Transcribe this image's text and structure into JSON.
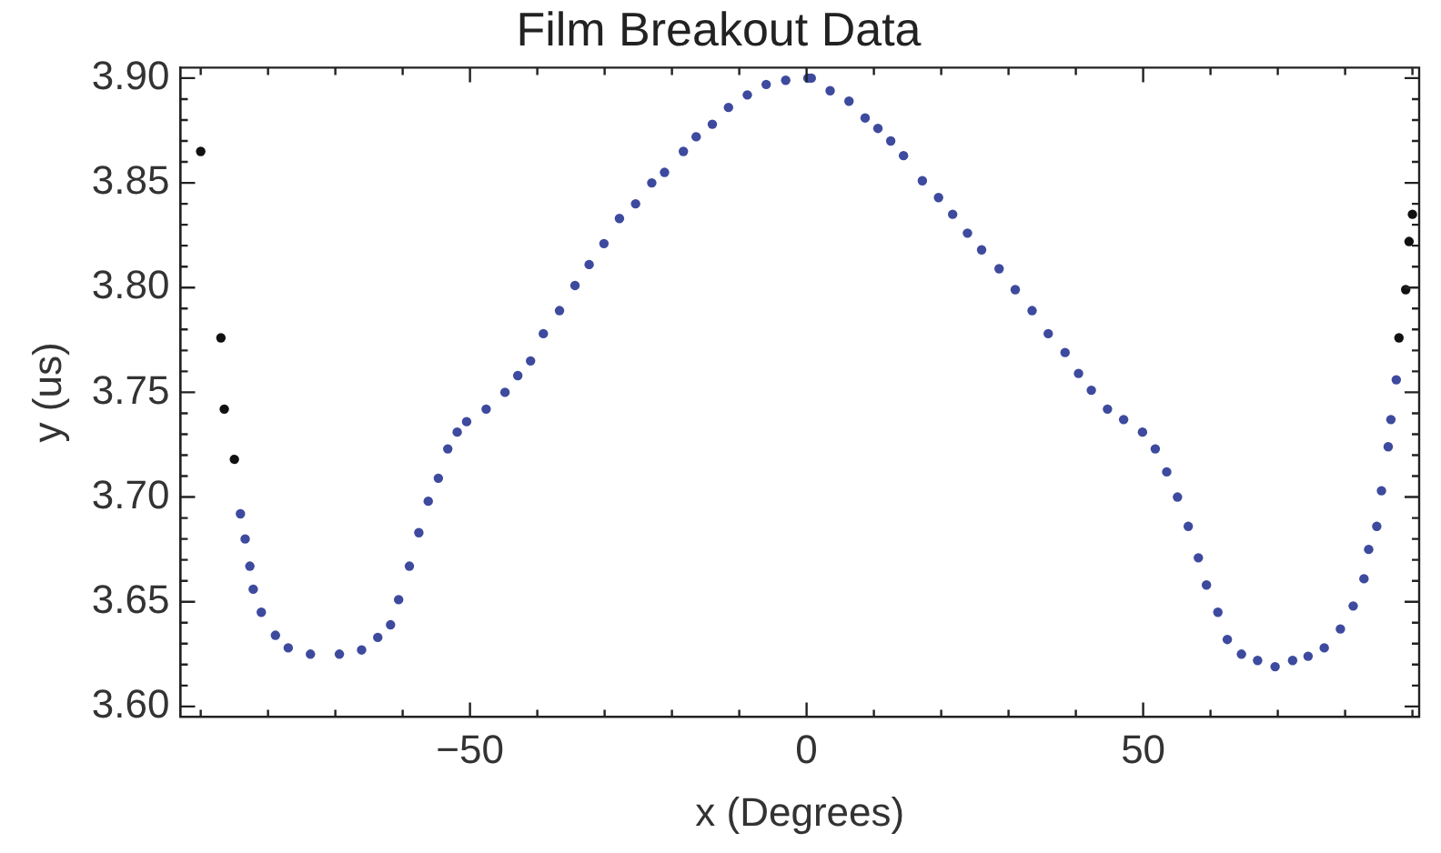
{
  "chart_data": {
    "type": "scatter",
    "title": "Film Breakout Data",
    "xlabel": "x (Degrees)",
    "ylabel": "y (us)",
    "xlim": [
      -93,
      91
    ],
    "ylim": [
      3.595,
      3.905
    ],
    "xticks": [
      {
        "value": -90,
        "label": null
      },
      {
        "value": -80,
        "label": null
      },
      {
        "value": -70,
        "label": null
      },
      {
        "value": -60,
        "label": null
      },
      {
        "value": -50,
        "label": "−50"
      },
      {
        "value": -40,
        "label": null
      },
      {
        "value": -30,
        "label": null
      },
      {
        "value": -20,
        "label": null
      },
      {
        "value": -10,
        "label": null
      },
      0,
      {
        "value": 10,
        "label": null
      },
      {
        "value": 20,
        "label": null
      },
      {
        "value": 30,
        "label": null
      },
      {
        "value": 40,
        "label": null
      },
      50,
      {
        "value": 60,
        "label": null
      },
      {
        "value": 70,
        "label": null
      },
      {
        "value": 80,
        "label": null
      },
      {
        "value": 90,
        "label": null
      }
    ],
    "yticks": [
      {
        "value": 3.6,
        "label": "3.60"
      },
      {
        "value": 3.61,
        "label": null
      },
      {
        "value": 3.62,
        "label": null
      },
      {
        "value": 3.63,
        "label": null
      },
      {
        "value": 3.64,
        "label": null
      },
      3.65,
      {
        "value": 3.66,
        "label": null
      },
      {
        "value": 3.67,
        "label": null
      },
      {
        "value": 3.68,
        "label": null
      },
      {
        "value": 3.69,
        "label": null
      },
      {
        "value": 3.7,
        "label": "3.70"
      },
      {
        "value": 3.71,
        "label": null
      },
      {
        "value": 3.72,
        "label": null
      },
      {
        "value": 3.73,
        "label": null
      },
      {
        "value": 3.74,
        "label": null
      },
      3.75,
      {
        "value": 3.76,
        "label": null
      },
      {
        "value": 3.77,
        "label": null
      },
      {
        "value": 3.78,
        "label": null
      },
      {
        "value": 3.79,
        "label": null
      },
      {
        "value": 3.8,
        "label": "3.80"
      },
      {
        "value": 3.81,
        "label": null
      },
      {
        "value": 3.82,
        "label": null
      },
      {
        "value": 3.83,
        "label": null
      },
      {
        "value": 3.84,
        "label": null
      },
      3.85,
      {
        "value": 3.86,
        "label": null
      },
      {
        "value": 3.87,
        "label": null
      },
      {
        "value": 3.88,
        "label": null
      },
      {
        "value": 3.89,
        "label": null
      },
      {
        "value": 3.9,
        "label": "3.90"
      }
    ],
    "grid": false,
    "marker": "circle",
    "series": [
      {
        "color": "#111111",
        "x": [
          -90,
          -87,
          -86.5,
          -85,
          88,
          89,
          89.5,
          90
        ],
        "values": [
          3.865,
          3.776,
          3.742,
          3.718,
          3.776,
          3.799,
          3.822,
          3.835
        ]
      },
      {
        "color": "#3d4a9e",
        "x": [
          -84.1,
          -83.4,
          -82.7,
          -82.2,
          -81,
          -78.9,
          -77,
          -73.7,
          -69.4,
          -66.1,
          -63.7,
          -61.8,
          -60.6,
          -59,
          -57.6,
          -56.2,
          -54.7,
          -53.3,
          -51.9,
          -50.5,
          -47.6,
          -44.8,
          -42.9,
          -41,
          -39.1,
          -36.7,
          -34.4,
          -32.3,
          -30.1,
          -27.8,
          -25.4,
          -23,
          -21.1,
          -18.3,
          -16.4,
          -14,
          -11.6,
          -8.8,
          -6,
          -3.1,
          0.2,
          0.7,
          3.5,
          6.3,
          8.7,
          10.6,
          12.5,
          14.4,
          17.2,
          19.6,
          21.7,
          23.9,
          26,
          28.6,
          31,
          33.5,
          35.9,
          38.4,
          40.4,
          42.3,
          44.7,
          47.1,
          49.9,
          51.8,
          53.5,
          55.1,
          56.7,
          58.2,
          59.4,
          61.1,
          62.5,
          64.6,
          67,
          69.6,
          72.2,
          74.5,
          76.9,
          79.3,
          81.2,
          82.8,
          83.5,
          84.7,
          85.4,
          86.4,
          86.8,
          87.6
        ],
        "values": [
          3.692,
          3.68,
          3.667,
          3.656,
          3.645,
          3.634,
          3.628,
          3.625,
          3.625,
          3.627,
          3.633,
          3.639,
          3.651,
          3.667,
          3.683,
          3.698,
          3.709,
          3.723,
          3.731,
          3.736,
          3.742,
          3.75,
          3.758,
          3.765,
          3.778,
          3.789,
          3.801,
          3.811,
          3.821,
          3.833,
          3.84,
          3.85,
          3.855,
          3.865,
          3.872,
          3.878,
          3.886,
          3.892,
          3.897,
          3.899,
          3.9,
          3.9,
          3.894,
          3.889,
          3.881,
          3.876,
          3.87,
          3.863,
          3.851,
          3.843,
          3.835,
          3.826,
          3.818,
          3.809,
          3.799,
          3.789,
          3.778,
          3.769,
          3.759,
          3.751,
          3.742,
          3.737,
          3.731,
          3.723,
          3.712,
          3.7,
          3.686,
          3.671,
          3.658,
          3.645,
          3.632,
          3.625,
          3.622,
          3.619,
          3.622,
          3.624,
          3.628,
          3.637,
          3.648,
          3.661,
          3.675,
          3.686,
          3.703,
          3.724,
          3.737,
          3.756
        ]
      }
    ]
  }
}
